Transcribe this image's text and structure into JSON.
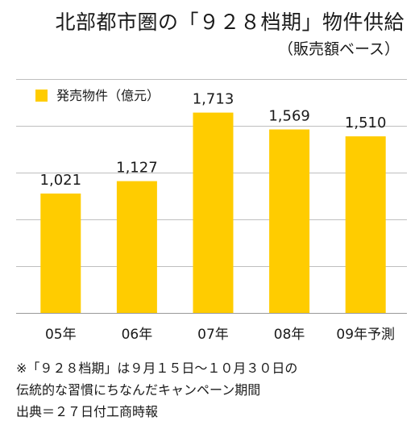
{
  "chart_data": {
    "type": "bar",
    "title": "北部都市圏の「９２８档期」物件供給",
    "subtitle": "（販売額ベース）",
    "legend": {
      "label": "発売物件（億元）",
      "color": "#ffcc00",
      "placement": "top-left"
    },
    "categories": [
      "05年",
      "06年",
      "07年",
      "08年",
      "09年予測"
    ],
    "values": [
      1021,
      1127,
      1713,
      1569,
      1510
    ],
    "value_labels": [
      "1,021",
      "1,127",
      "1,713",
      "1,569",
      "1,510"
    ],
    "ylim": [
      0,
      2000
    ],
    "gridlines": [
      400,
      800,
      1200,
      1600,
      2000
    ],
    "grid": true,
    "bar_color": "#ffcc00",
    "grid_color": "#bfbfbf"
  },
  "notes": [
    "※「９２８档期」は９月１５日〜１０月３０日の",
    "伝統的な習慣にちなんだキャンペーン期間",
    "出典＝２７日付工商時報"
  ]
}
